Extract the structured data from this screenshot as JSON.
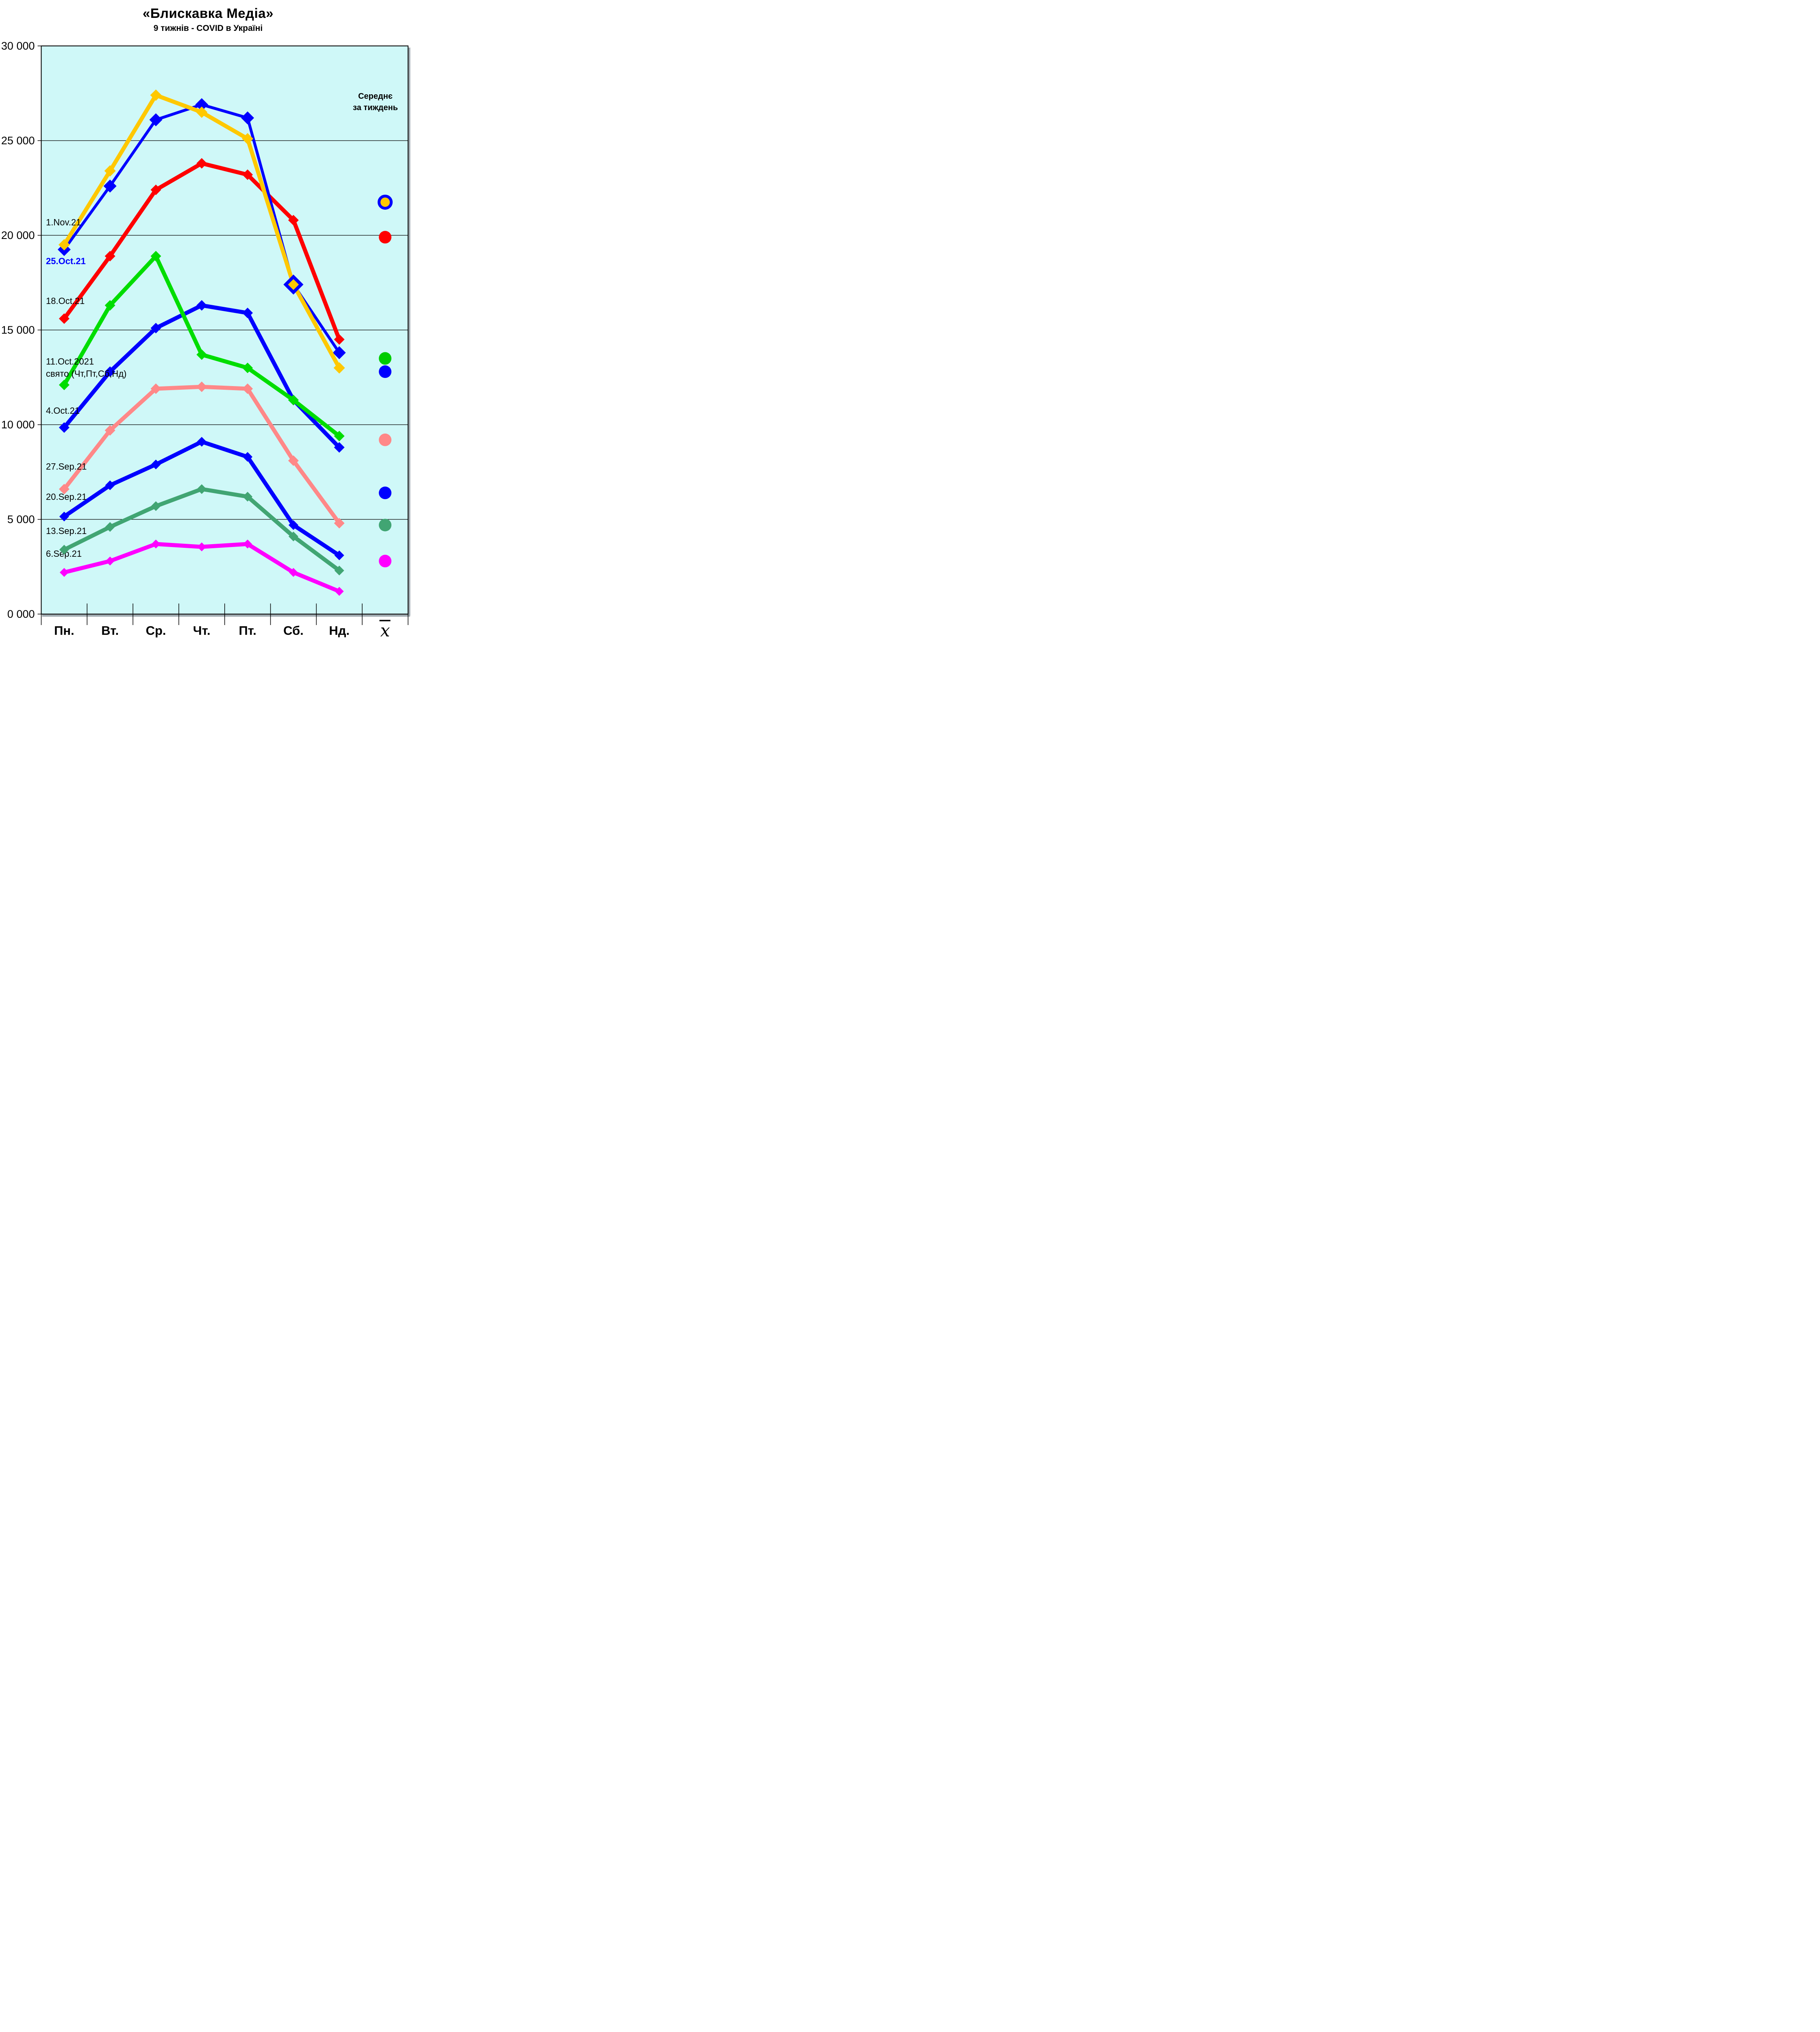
{
  "title": "«Блискавка Медіа»",
  "subtitle": "9 тижнів - COVID в Україні",
  "legend": {
    "title_lines": [
      "Середнє",
      "за тиждень"
    ],
    "mean_symbol": "x"
  },
  "chart_data": {
    "type": "line",
    "title": "«Блискавка Медіа» — 9 тижнів - COVID в Україні",
    "categories": [
      "Пн.",
      "Вт.",
      "Ср.",
      "Чт.",
      "Пт.",
      "Сб.",
      "Нд."
    ],
    "mean_column_label": "x̄",
    "y_axis": {
      "min": 0,
      "max": 30000,
      "step": 5000,
      "tick_labels": [
        "30 000",
        "25 000",
        "20 000",
        "15 000",
        "10 000",
        "5 000",
        "0 000"
      ]
    },
    "grid": true,
    "legend_position": "right-column",
    "series": [
      {
        "name": "1.Nov.21",
        "color": "#FFC800",
        "stroke_width": 10,
        "marker_size": 14,
        "values": [
          19500,
          23400,
          27400,
          26500,
          25100,
          17400,
          13000
        ],
        "mean": 21750,
        "mean_dot": {
          "fill": "#FFC800",
          "ring": "#0000FF"
        },
        "open_marker_index": 5,
        "label": {
          "lines": [
            "1.Nov.21"
          ],
          "color": "#000000",
          "bold": false,
          "y_value": 20700
        }
      },
      {
        "name": "25.Oct.21",
        "color": "#0000FF",
        "stroke_width": 7,
        "marker_size": 16,
        "values": [
          19250,
          22600,
          26100,
          26900,
          26200,
          17400,
          13800
        ],
        "mean": 21750,
        "mean_dot": null,
        "hidden_marker_index": 5,
        "label": {
          "lines": [
            "25.Oct.21"
          ],
          "color": "#0000FF",
          "bold": true,
          "y_value": 18650
        }
      },
      {
        "name": "18.Oct.21",
        "color": "#FF0000",
        "stroke_width": 10,
        "marker_size": 13,
        "values": [
          15600,
          18900,
          22400,
          23800,
          23200,
          20800,
          14500
        ],
        "mean": 19900,
        "mean_dot": {
          "fill": "#FF0000",
          "ring": null
        },
        "label": {
          "lines": [
            "18.Oct.21"
          ],
          "color": "#000000",
          "bold": false,
          "y_value": 16550
        }
      },
      {
        "name": "11.Oct.2021",
        "color": "#00DD00",
        "stroke_width": 10,
        "marker_size": 13,
        "values": [
          12100,
          16300,
          18900,
          13700,
          13000,
          11300,
          9400
        ],
        "mean": 13500,
        "mean_dot": {
          "fill": "#00CC00",
          "ring": null
        },
        "label": {
          "lines": [
            "11.Oct.2021",
            "свято (Чт,Пт,Сб,Нд)"
          ],
          "color": "#000000",
          "bold": false,
          "y_value": 13350
        }
      },
      {
        "name": "4.Oct.21",
        "color": "#0000FF",
        "stroke_width": 10,
        "marker_size": 13,
        "values": [
          9850,
          12800,
          15100,
          16300,
          15900,
          11300,
          8800
        ],
        "mean": 12800,
        "mean_dot": {
          "fill": "#0000FF",
          "ring": null
        },
        "label": {
          "lines": [
            "4.Oct.21"
          ],
          "color": "#000000",
          "bold": false,
          "y_value": 10750
        }
      },
      {
        "name": "27.Sep.21",
        "color": "#FF8888",
        "stroke_width": 10,
        "marker_size": 13,
        "values": [
          6600,
          9700,
          11900,
          12000,
          11900,
          8100,
          4800
        ],
        "mean": 9200,
        "mean_dot": {
          "fill": "#FF8888",
          "ring": null
        },
        "label": {
          "lines": [
            "27.Sep.21"
          ],
          "color": "#000000",
          "bold": false,
          "y_value": 7800
        }
      },
      {
        "name": "20.Sep.21",
        "color": "#0000FF",
        "stroke_width": 10,
        "marker_size": 12,
        "values": [
          5150,
          6800,
          7900,
          9100,
          8300,
          4700,
          3100
        ],
        "mean": 6400,
        "mean_dot": {
          "fill": "#0000FF",
          "ring": null
        },
        "label": {
          "lines": [
            "20.Sep.21"
          ],
          "color": "#000000",
          "bold": false,
          "y_value": 6200
        }
      },
      {
        "name": "13.Sep.21",
        "color": "#41A573",
        "stroke_width": 10,
        "marker_size": 12,
        "values": [
          3400,
          4600,
          5700,
          6600,
          6200,
          4100,
          2300
        ],
        "mean": 4700,
        "mean_dot": {
          "fill": "#41A573",
          "ring": null
        },
        "label": {
          "lines": [
            "13.Sep.21"
          ],
          "color": "#000000",
          "bold": false,
          "y_value": 4400
        }
      },
      {
        "name": "6.Sep.21",
        "color": "#FF00FF",
        "stroke_width": 10,
        "marker_size": 11,
        "values": [
          2200,
          2800,
          3700,
          3550,
          3700,
          2200,
          1200
        ],
        "mean": 2800,
        "mean_dot": {
          "fill": "#FF00FF",
          "ring": null
        },
        "label": {
          "lines": [
            "6.Sep.21"
          ],
          "color": "#000000",
          "bold": false,
          "y_value": 3200
        }
      }
    ]
  },
  "colors": {
    "plot_background": "#CFF8F8",
    "grid": "#000000",
    "axis": "#000000",
    "shadow": "#9FAAB0"
  }
}
